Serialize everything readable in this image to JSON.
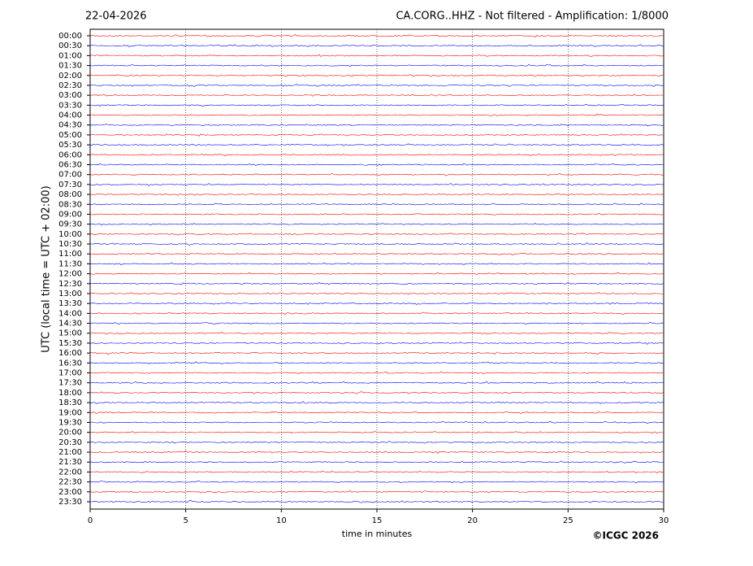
{
  "chart_data": {
    "type": "helicorder",
    "date": "22-04-2026",
    "title": "CA.CORG..HHZ - Not filtered - Amplification: 1/8000",
    "y_label": "UTC (local time = UTC + 02:00)",
    "x_label": "time in minutes",
    "credit": "©ICGC 2026",
    "categories": [
      "00:00",
      "00:30",
      "01:00",
      "01:30",
      "02:00",
      "02:30",
      "03:00",
      "03:30",
      "04:00",
      "04:30",
      "05:00",
      "05:30",
      "06:00",
      "06:30",
      "07:00",
      "07:30",
      "08:00",
      "08:30",
      "09:00",
      "09:30",
      "10:00",
      "10:30",
      "11:00",
      "11:30",
      "12:00",
      "12:30",
      "13:00",
      "13:30",
      "14:00",
      "14:30",
      "15:00",
      "15:30",
      "16:00",
      "16:30",
      "17:00",
      "17:30",
      "18:00",
      "18:30",
      "19:00",
      "19:30",
      "20:00",
      "20:30",
      "21:00",
      "21:30",
      "22:00",
      "22:30",
      "23:00",
      "23:30"
    ],
    "colors": [
      "#ff0000",
      "#0000ff"
    ],
    "xlim": [
      0,
      30
    ],
    "xticks": [
      0,
      5,
      10,
      15,
      20,
      25,
      30
    ],
    "grid": true
  }
}
